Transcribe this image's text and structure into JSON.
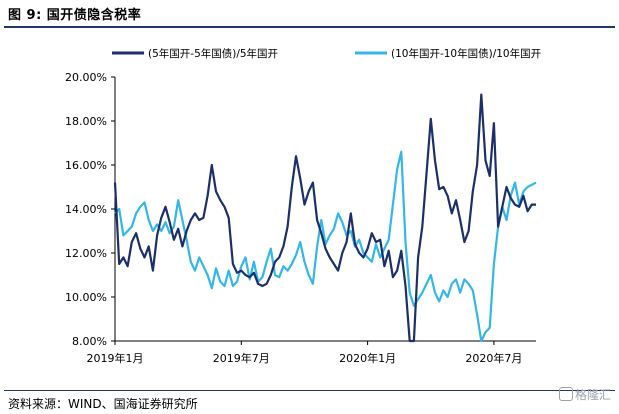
{
  "header": {
    "title": "图 9:  国开债隐含税率"
  },
  "footer": {
    "source": "资料来源：WIND、国海证券研究所",
    "watermark": "格隆汇"
  },
  "colors": {
    "series1": "#1b2f6a",
    "series2": "#33b7ea",
    "rule": "#1f3864"
  },
  "chart_data": {
    "type": "line",
    "title": "国开债隐含税率",
    "xlabel": "",
    "ylabel": "",
    "ylim": [
      8.0,
      20.0
    ],
    "yticks": [
      "8.00%",
      "10.00%",
      "12.00%",
      "14.00%",
      "16.00%",
      "18.00%",
      "20.00%"
    ],
    "ytick_values": [
      8,
      10,
      12,
      14,
      16,
      18,
      20
    ],
    "xlim": [
      0,
      20
    ],
    "xticks": [
      "2019年1月",
      "2019年7月",
      "2020年1月",
      "2020年7月"
    ],
    "xtick_values": [
      0,
      6,
      12,
      18
    ],
    "legend_position": "top",
    "grid": false,
    "series": [
      {
        "name": "(5年国开-5年国债)/5年国开",
        "color": "#1b2f6a",
        "x": [
          0.0,
          0.2,
          0.4,
          0.6,
          0.8,
          1.0,
          1.2,
          1.4,
          1.6,
          1.8,
          2.0,
          2.2,
          2.4,
          2.6,
          2.8,
          3.0,
          3.2,
          3.4,
          3.6,
          3.8,
          4.0,
          4.2,
          4.4,
          4.6,
          4.8,
          5.0,
          5.2,
          5.4,
          5.6,
          5.8,
          6.0,
          6.2,
          6.4,
          6.6,
          6.8,
          7.0,
          7.2,
          7.4,
          7.6,
          7.8,
          8.0,
          8.2,
          8.4,
          8.6,
          8.8,
          9.0,
          9.2,
          9.4,
          9.6,
          9.8,
          10.0,
          10.2,
          10.4,
          10.6,
          10.8,
          11.0,
          11.2,
          11.4,
          11.6,
          11.8,
          12.0,
          12.2,
          12.4,
          12.6,
          12.8,
          13.0,
          13.2,
          13.4,
          13.6,
          13.8,
          14.0,
          14.2,
          14.4,
          14.6,
          14.8,
          15.0,
          15.2,
          15.4,
          15.6,
          15.8,
          16.0,
          16.2,
          16.4,
          16.6,
          16.8,
          17.0,
          17.2,
          17.4,
          17.6,
          17.8,
          18.0,
          18.2,
          18.4,
          18.6,
          18.8,
          19.0,
          19.2,
          19.4,
          19.6,
          19.8,
          20.0
        ],
        "values": [
          15.2,
          11.5,
          11.8,
          11.4,
          12.5,
          12.9,
          12.2,
          11.8,
          12.3,
          11.2,
          12.8,
          13.6,
          14.1,
          13.4,
          12.6,
          13.1,
          12.3,
          13.0,
          13.5,
          13.8,
          13.5,
          13.6,
          14.6,
          16.0,
          14.8,
          14.4,
          14.1,
          13.6,
          11.5,
          11.1,
          11.2,
          11.0,
          10.9,
          11.1,
          10.6,
          10.5,
          10.6,
          11.0,
          11.6,
          11.8,
          12.3,
          13.2,
          15.0,
          16.4,
          15.4,
          14.2,
          14.8,
          15.2,
          13.5,
          12.9,
          12.2,
          11.8,
          11.5,
          11.2,
          12.0,
          12.5,
          13.8,
          12.4,
          12.0,
          11.8,
          12.2,
          12.9,
          12.5,
          12.6,
          11.4,
          12.1,
          10.9,
          11.2,
          12.1,
          10.5,
          8.0,
          8.0,
          11.8,
          13.2,
          15.6,
          18.1,
          16.2,
          14.9,
          15.0,
          14.6,
          13.8,
          14.4,
          13.5,
          12.5,
          13.0,
          14.8,
          16.0,
          19.2,
          16.2,
          15.5,
          17.9,
          13.2,
          14.1,
          15.0,
          14.5,
          14.2,
          14.1,
          14.6,
          13.9,
          14.2,
          14.2
        ]
      },
      {
        "name": "(10年国开-10年国债)/10年国开",
        "color": "#33b7ea",
        "x": [
          0.0,
          0.2,
          0.4,
          0.6,
          0.8,
          1.0,
          1.2,
          1.4,
          1.6,
          1.8,
          2.0,
          2.2,
          2.4,
          2.6,
          2.8,
          3.0,
          3.2,
          3.4,
          3.6,
          3.8,
          4.0,
          4.2,
          4.4,
          4.6,
          4.8,
          5.0,
          5.2,
          5.4,
          5.6,
          5.8,
          6.0,
          6.2,
          6.4,
          6.6,
          6.8,
          7.0,
          7.2,
          7.4,
          7.6,
          7.8,
          8.0,
          8.2,
          8.4,
          8.6,
          8.8,
          9.0,
          9.2,
          9.4,
          9.6,
          9.8,
          10.0,
          10.2,
          10.4,
          10.6,
          10.8,
          11.0,
          11.2,
          11.4,
          11.6,
          11.8,
          12.0,
          12.2,
          12.4,
          12.6,
          12.8,
          13.0,
          13.2,
          13.4,
          13.6,
          13.8,
          14.0,
          14.2,
          14.4,
          14.6,
          14.8,
          15.0,
          15.2,
          15.4,
          15.6,
          15.8,
          16.0,
          16.2,
          16.4,
          16.6,
          16.8,
          17.0,
          17.2,
          17.4,
          17.6,
          17.8,
          18.0,
          18.2,
          18.4,
          18.6,
          18.8,
          19.0,
          19.2,
          19.4,
          19.6,
          19.8,
          20.0
        ],
        "values": [
          13.8,
          14.0,
          12.8,
          13.0,
          13.2,
          13.8,
          14.1,
          14.3,
          13.5,
          13.0,
          13.3,
          13.0,
          13.4,
          12.9,
          13.2,
          14.4,
          13.5,
          12.6,
          11.6,
          11.2,
          11.8,
          11.4,
          11.0,
          10.4,
          11.3,
          10.7,
          10.5,
          11.2,
          10.5,
          10.7,
          11.4,
          11.8,
          10.8,
          11.6,
          10.7,
          10.9,
          11.6,
          12.2,
          11.0,
          10.9,
          11.4,
          11.2,
          11.5,
          11.9,
          12.5,
          11.6,
          11.0,
          10.6,
          12.3,
          13.5,
          12.4,
          12.8,
          13.1,
          13.8,
          13.4,
          12.8,
          13.0,
          12.3,
          12.6,
          12.0,
          11.8,
          11.6,
          12.4,
          11.8,
          12.2,
          12.6,
          14.2,
          15.8,
          16.6,
          12.5,
          10.2,
          9.6,
          9.9,
          10.2,
          10.6,
          11.0,
          10.2,
          9.8,
          10.3,
          10.0,
          10.6,
          10.8,
          10.2,
          10.8,
          10.6,
          10.3,
          9.2,
          8.0,
          8.4,
          8.6,
          11.5,
          13.2,
          14.1,
          13.5,
          14.6,
          15.2,
          14.2,
          14.8,
          15.0,
          15.1,
          15.2
        ]
      }
    ]
  }
}
